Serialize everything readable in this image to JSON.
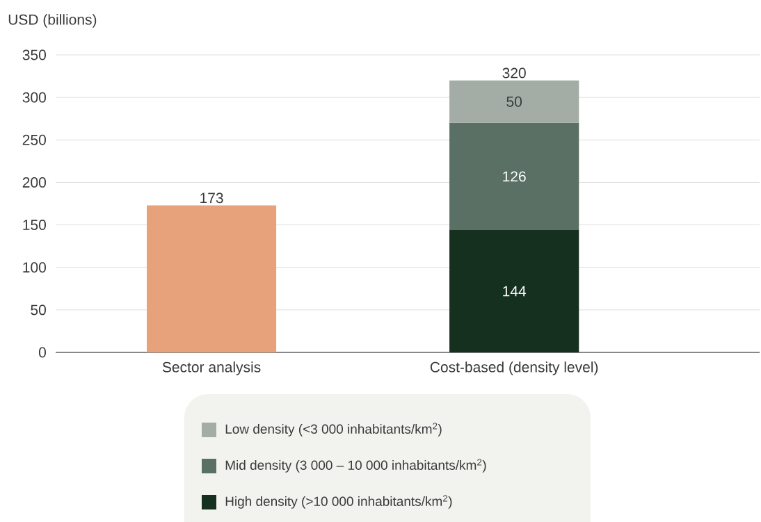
{
  "chart_data": {
    "type": "bar",
    "ylabel": "USD (billions)",
    "categories": [
      "Sector analysis",
      "Cost-based (density level)"
    ],
    "stacked": true,
    "series": [
      {
        "color": "#e8a27b",
        "values": [
          173,
          null
        ]
      },
      {
        "name": "High density (>10 000 inhabitants/km$^{2}$)",
        "color": "#163020",
        "values": [
          null,
          144
        ],
        "value_labels": [
          null,
          "144"
        ]
      },
      {
        "name": "Mid density (3 000 – 10 000 inhabitants/km$^{2}$)",
        "color": "#5a7064",
        "values": [
          null,
          126
        ],
        "value_labels": [
          null,
          "126"
        ]
      },
      {
        "name": "Low density (<3 000 inhabitants/km$^{2}$)",
        "color": "#a3ada6",
        "values": [
          null,
          50
        ],
        "value_labels": [
          null,
          "50"
        ]
      }
    ],
    "totals": [
      "173",
      "320"
    ],
    "ylim": [
      0,
      350
    ],
    "yticks": [
      0,
      50,
      100,
      150,
      200,
      250,
      300,
      350
    ],
    "grid": "y",
    "legend": "bottom"
  }
}
